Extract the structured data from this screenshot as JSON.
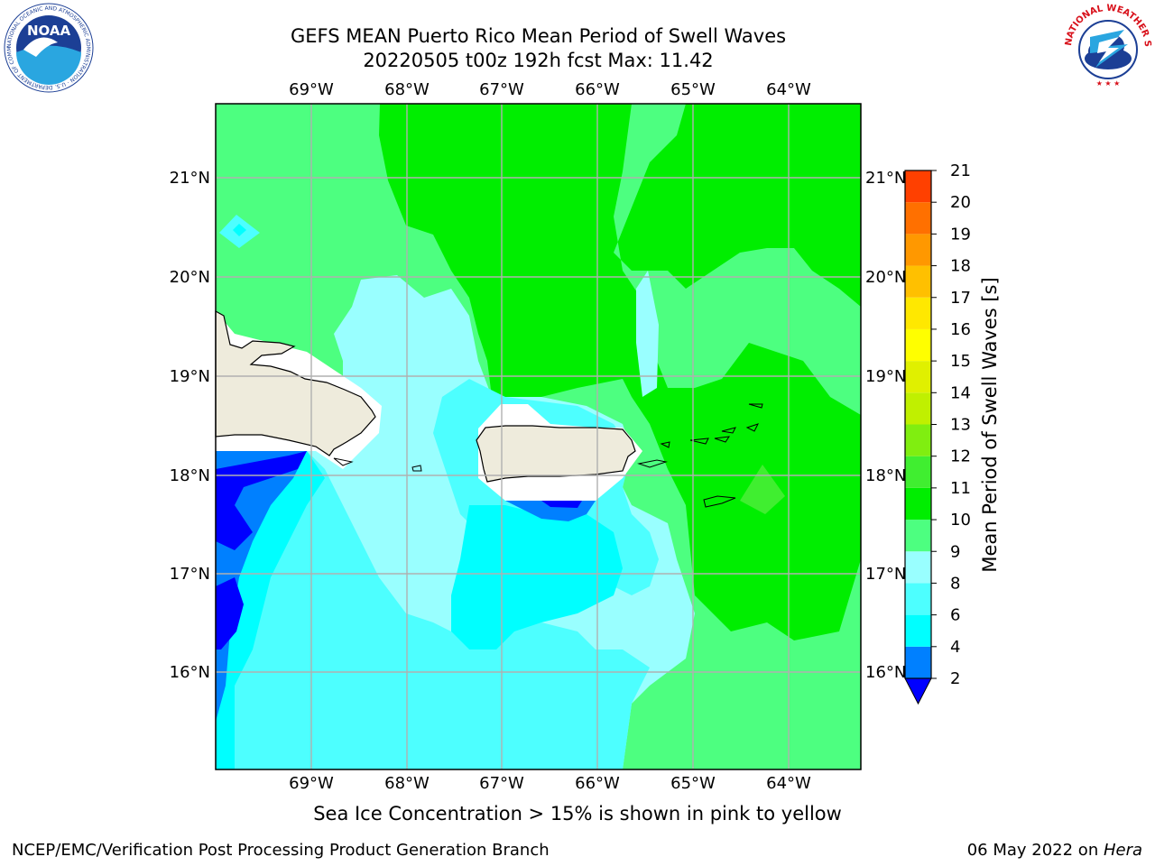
{
  "header": {
    "title_line1": "GEFS MEAN Puerto Rico Mean Period of Swell Waves",
    "title_line2": "20220505 t00z 192h fcst   Max: 11.42"
  },
  "map": {
    "lon_labels": [
      "69°W",
      "68°W",
      "67°W",
      "66°W",
      "65°W",
      "64°W"
    ],
    "lat_labels": [
      "21°N",
      "20°N",
      "19°N",
      "18°N",
      "17°N",
      "16°N"
    ],
    "colors": {
      "c2_4": "#0080ff",
      "c4_6": "#00ffff",
      "c6_8": "#4dffff",
      "c8_9": "#99ffff",
      "c9_10": "#4dff80",
      "c10_11": "#00ee00",
      "c11_12": "#40ee30",
      "below2": "#0000ff",
      "land": "#eeebdc"
    }
  },
  "colorbar": {
    "label": "Mean Period of Swell Waves [s]",
    "ticks": [
      "2",
      "4",
      "6",
      "8",
      "9",
      "10",
      "11",
      "12",
      "13",
      "14",
      "15",
      "16",
      "17",
      "18",
      "19",
      "20",
      "21"
    ],
    "colors": [
      "#0080ff",
      "#00ffff",
      "#4dffff",
      "#99ffff",
      "#4dff80",
      "#00ee00",
      "#40ee30",
      "#80ee10",
      "#c0f000",
      "#e0f000",
      "#ffff00",
      "#ffe800",
      "#ffc000",
      "#ff9800",
      "#ff7000",
      "#ff4000",
      "#ff0000"
    ]
  },
  "caption": "Sea Ice Concentration > 15% is shown in pink to yellow",
  "footer": {
    "left": "NCEP/EMC/Verification Post Processing Product Generation Branch",
    "date": "06 May 2022 on ",
    "machine": "Hera"
  },
  "logos": {
    "noaa_text": "NOAA",
    "noaa_ring": "NATIONAL OCEANIC AND ATMOSPHERIC ADMINISTRATION · U.S. DEPARTMENT OF COMMERCE",
    "nws_ring": "NATIONAL WEATHER SERVICE"
  }
}
